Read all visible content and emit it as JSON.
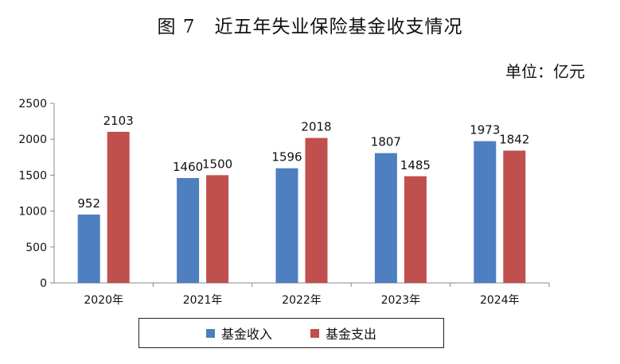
{
  "title": "图 7　近五年失业保险基金收支情况",
  "unit_note": "单位：亿元",
  "colors": {
    "income": "#4e7fc1",
    "expense": "#c0504d"
  },
  "chart_data": {
    "type": "bar",
    "categories": [
      "2020年",
      "2021年",
      "2022年",
      "2023年",
      "2024年"
    ],
    "series": [
      {
        "name": "基金收入",
        "values": [
          952,
          1460,
          1596,
          1807,
          1973
        ]
      },
      {
        "name": "基金支出",
        "values": [
          2103,
          1500,
          2018,
          1485,
          1842
        ]
      }
    ],
    "yticks": [
      "0",
      "500",
      "1000",
      "1500",
      "2000",
      "2500"
    ],
    "ylim": [
      0,
      2500
    ],
    "grid": false,
    "legend_position": "bottom"
  }
}
